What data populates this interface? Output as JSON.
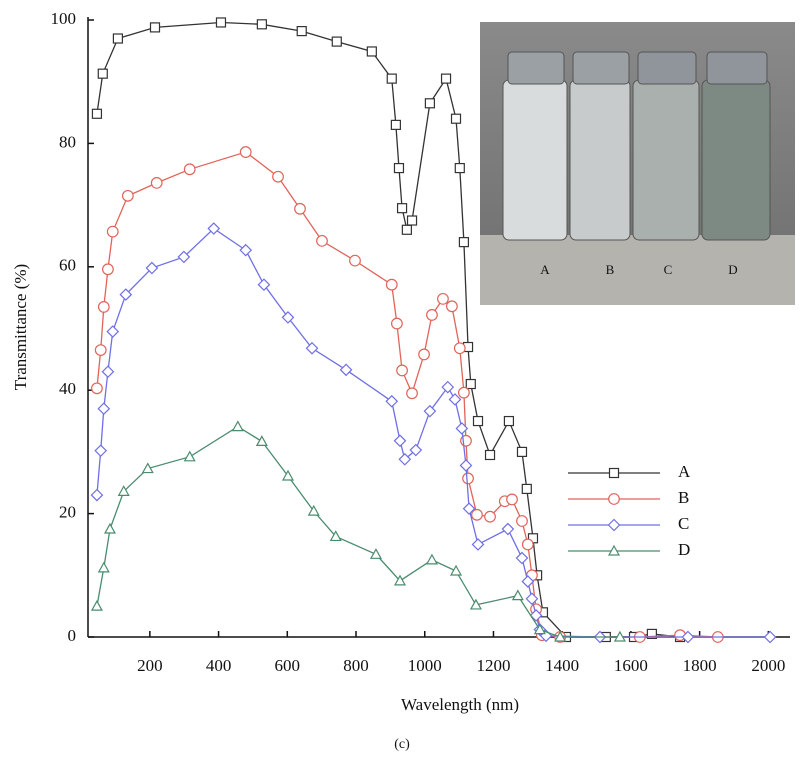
{
  "chart_data": {
    "type": "line",
    "x_label": "Wavelength (nm)",
    "y_label": "Transmittance (%)",
    "caption": "(c)",
    "xlim": [
      20,
      2063
    ],
    "ylim": [
      0,
      100
    ],
    "xticks": [
      200,
      400,
      600,
      800,
      1000,
      1200,
      1400,
      1600,
      1800,
      2000
    ],
    "yticks": [
      0,
      20,
      40,
      60,
      80,
      100
    ],
    "grid": false,
    "legend": "right",
    "inset_labels": [
      "A",
      "B",
      "C",
      "D"
    ],
    "series": [
      {
        "name": "A",
        "color": "#333333",
        "marker": "square",
        "x": [
          46,
          63,
          107,
          215,
          407,
          526,
          642,
          744,
          846,
          904,
          916,
          925,
          934,
          948,
          963,
          1015,
          1062,
          1091,
          1102,
          1114,
          1126,
          1134,
          1155,
          1190,
          1245,
          1283,
          1297,
          1315,
          1327,
          1344,
          1411,
          1527,
          1609,
          1661,
          1743
        ],
        "values": [
          84.8,
          91.3,
          97,
          98.8,
          99.6,
          99.3,
          98.2,
          96.5,
          94.9,
          90.5,
          83,
          76,
          69.5,
          66,
          67.5,
          86.5,
          90.5,
          84,
          76,
          64,
          47,
          41,
          35,
          29.5,
          35,
          30,
          24,
          16,
          10,
          4,
          0,
          0,
          0,
          0.5,
          0
        ]
      },
      {
        "name": "B",
        "color": "#e0645a",
        "marker": "circle",
        "x": [
          46,
          57,
          66,
          78,
          92,
          136,
          220,
          316,
          479,
          573,
          637,
          701,
          797,
          904,
          919,
          934,
          963,
          998,
          1021,
          1053,
          1079,
          1102,
          1114,
          1120,
          1126,
          1152,
          1190,
          1233,
          1254,
          1283,
          1300,
          1312,
          1324,
          1341,
          1394,
          1626,
          1743,
          1853
        ],
        "values": [
          40.3,
          46.5,
          53.5,
          59.6,
          65.7,
          71.5,
          73.6,
          75.8,
          78.6,
          74.6,
          69.4,
          64.2,
          61,
          57.1,
          50.8,
          43.2,
          39.5,
          45.8,
          52.2,
          54.8,
          53.6,
          46.8,
          39.6,
          31.8,
          25.7,
          19.8,
          19.5,
          22,
          22.3,
          18.8,
          15,
          10,
          4.5,
          0.3,
          0,
          0,
          0.3,
          0
        ]
      },
      {
        "name": "C",
        "color": "#6f6fe6",
        "marker": "diamond",
        "x": [
          46,
          57,
          66,
          78,
          92,
          130,
          206,
          299,
          386,
          479,
          532,
          602,
          672,
          771,
          904,
          928,
          942,
          974,
          1015,
          1067,
          1088,
          1108,
          1120,
          1129,
          1155,
          1242,
          1283,
          1300,
          1312,
          1324,
          1335,
          1353,
          1510,
          1766,
          2005
        ],
        "values": [
          23,
          30.2,
          37,
          43,
          49.5,
          55.5,
          59.8,
          61.6,
          66.2,
          62.7,
          57.1,
          51.8,
          46.8,
          43.3,
          38.2,
          31.8,
          28.8,
          30.3,
          36.6,
          40.5,
          38.5,
          33.8,
          27.8,
          20.8,
          15,
          17.5,
          12.8,
          9,
          6.2,
          3.5,
          1.2,
          0.2,
          0,
          0,
          0
        ]
      },
      {
        "name": "D",
        "color": "#4a8c6e",
        "marker": "triangle",
        "x": [
          46,
          66,
          84,
          124,
          194,
          316,
          456,
          526,
          602,
          677,
          741,
          858,
          928,
          1021,
          1091,
          1149,
          1271,
          1335,
          1394,
          1568
        ],
        "values": [
          5,
          11.2,
          17.5,
          23.6,
          27.3,
          29.2,
          34.1,
          31.7,
          26.1,
          20.4,
          16.3,
          13.4,
          9.1,
          12.5,
          10.7,
          5.2,
          6.7,
          1.2,
          0,
          0
        ]
      }
    ]
  }
}
